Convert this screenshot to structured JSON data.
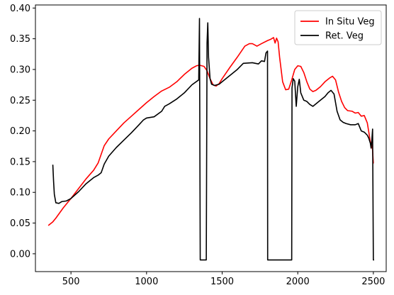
{
  "chart_data": {
    "type": "line",
    "title": "",
    "xlabel": "",
    "ylabel": "",
    "xlim": [
      265,
      2585
    ],
    "ylim": [
      -0.029,
      0.405
    ],
    "xticks": [
      500,
      1000,
      1500,
      2000,
      2500
    ],
    "yticks": [
      0.0,
      0.05,
      0.1,
      0.15,
      0.2,
      0.25,
      0.3,
      0.35,
      0.4
    ],
    "xtick_labels": [
      "500",
      "1000",
      "1500",
      "2000",
      "2500"
    ],
    "ytick_labels": [
      "0.00",
      "0.05",
      "0.10",
      "0.15",
      "0.20",
      "0.25",
      "0.30",
      "0.35",
      "0.40"
    ],
    "grid": false,
    "legend_position": "top-right",
    "series": [
      {
        "name": "In Situ Veg",
        "color": "#ff0000",
        "points": [
          [
            350,
            0.046
          ],
          [
            380,
            0.052
          ],
          [
            400,
            0.058
          ],
          [
            450,
            0.075
          ],
          [
            500,
            0.09
          ],
          [
            550,
            0.106
          ],
          [
            600,
            0.122
          ],
          [
            650,
            0.136
          ],
          [
            680,
            0.148
          ],
          [
            700,
            0.162
          ],
          [
            720,
            0.176
          ],
          [
            750,
            0.187
          ],
          [
            800,
            0.2
          ],
          [
            850,
            0.213
          ],
          [
            900,
            0.224
          ],
          [
            950,
            0.235
          ],
          [
            1000,
            0.246
          ],
          [
            1050,
            0.256
          ],
          [
            1100,
            0.265
          ],
          [
            1150,
            0.271
          ],
          [
            1200,
            0.28
          ],
          [
            1250,
            0.292
          ],
          [
            1300,
            0.302
          ],
          [
            1330,
            0.306
          ],
          [
            1350,
            0.307
          ],
          [
            1380,
            0.305
          ],
          [
            1400,
            0.298
          ],
          [
            1420,
            0.285
          ],
          [
            1440,
            0.275
          ],
          [
            1460,
            0.273
          ],
          [
            1480,
            0.277
          ],
          [
            1500,
            0.285
          ],
          [
            1550,
            0.303
          ],
          [
            1600,
            0.32
          ],
          [
            1650,
            0.338
          ],
          [
            1680,
            0.342
          ],
          [
            1700,
            0.342
          ],
          [
            1730,
            0.338
          ],
          [
            1760,
            0.342
          ],
          [
            1800,
            0.347
          ],
          [
            1820,
            0.349
          ],
          [
            1840,
            0.352
          ],
          [
            1850,
            0.343
          ],
          [
            1860,
            0.351
          ],
          [
            1870,
            0.345
          ],
          [
            1880,
            0.32
          ],
          [
            1900,
            0.28
          ],
          [
            1920,
            0.267
          ],
          [
            1940,
            0.268
          ],
          [
            1960,
            0.283
          ],
          [
            1980,
            0.3
          ],
          [
            2000,
            0.306
          ],
          [
            2020,
            0.305
          ],
          [
            2040,
            0.295
          ],
          [
            2060,
            0.28
          ],
          [
            2080,
            0.268
          ],
          [
            2100,
            0.264
          ],
          [
            2120,
            0.266
          ],
          [
            2150,
            0.272
          ],
          [
            2180,
            0.28
          ],
          [
            2210,
            0.286
          ],
          [
            2230,
            0.289
          ],
          [
            2250,
            0.283
          ],
          [
            2270,
            0.263
          ],
          [
            2290,
            0.248
          ],
          [
            2310,
            0.238
          ],
          [
            2330,
            0.233
          ],
          [
            2360,
            0.232
          ],
          [
            2380,
            0.229
          ],
          [
            2400,
            0.23
          ],
          [
            2420,
            0.224
          ],
          [
            2440,
            0.225
          ],
          [
            2460,
            0.213
          ],
          [
            2470,
            0.198
          ],
          [
            2480,
            0.182
          ],
          [
            2490,
            0.178
          ],
          [
            2495,
            0.168
          ],
          [
            2500,
            0.147
          ]
        ]
      },
      {
        "name": "Ret. Veg",
        "color": "#000000",
        "points": [
          [
            380,
            0.145
          ],
          [
            385,
            0.118
          ],
          [
            390,
            0.097
          ],
          [
            400,
            0.083
          ],
          [
            420,
            0.082
          ],
          [
            440,
            0.085
          ],
          [
            470,
            0.086
          ],
          [
            500,
            0.09
          ],
          [
            550,
            0.101
          ],
          [
            600,
            0.114
          ],
          [
            650,
            0.124
          ],
          [
            680,
            0.128
          ],
          [
            700,
            0.132
          ],
          [
            720,
            0.146
          ],
          [
            750,
            0.159
          ],
          [
            800,
            0.173
          ],
          [
            850,
            0.185
          ],
          [
            900,
            0.197
          ],
          [
            950,
            0.21
          ],
          [
            980,
            0.218
          ],
          [
            1000,
            0.221
          ],
          [
            1050,
            0.223
          ],
          [
            1100,
            0.232
          ],
          [
            1120,
            0.24
          ],
          [
            1150,
            0.244
          ],
          [
            1200,
            0.252
          ],
          [
            1250,
            0.262
          ],
          [
            1300,
            0.275
          ],
          [
            1345,
            0.283
          ],
          [
            1350,
            0.383
          ],
          [
            1355,
            -0.01
          ],
          [
            1395,
            -0.01
          ],
          [
            1400,
            0.343
          ],
          [
            1405,
            0.376
          ],
          [
            1410,
            0.32
          ],
          [
            1420,
            0.285
          ],
          [
            1430,
            0.276
          ],
          [
            1450,
            0.274
          ],
          [
            1480,
            0.276
          ],
          [
            1500,
            0.28
          ],
          [
            1550,
            0.29
          ],
          [
            1600,
            0.3
          ],
          [
            1640,
            0.31
          ],
          [
            1700,
            0.311
          ],
          [
            1740,
            0.309
          ],
          [
            1760,
            0.314
          ],
          [
            1780,
            0.313
          ],
          [
            1790,
            0.327
          ],
          [
            1800,
            0.33
          ],
          [
            1801,
            -0.01
          ],
          [
            1960,
            -0.01
          ],
          [
            1962,
            0.27
          ],
          [
            1970,
            0.285
          ],
          [
            1980,
            0.281
          ],
          [
            1990,
            0.24
          ],
          [
            2000,
            0.272
          ],
          [
            2010,
            0.284
          ],
          [
            2020,
            0.262
          ],
          [
            2040,
            0.25
          ],
          [
            2060,
            0.248
          ],
          [
            2080,
            0.243
          ],
          [
            2100,
            0.24
          ],
          [
            2120,
            0.244
          ],
          [
            2150,
            0.25
          ],
          [
            2180,
            0.256
          ],
          [
            2200,
            0.262
          ],
          [
            2220,
            0.266
          ],
          [
            2240,
            0.26
          ],
          [
            2260,
            0.232
          ],
          [
            2280,
            0.218
          ],
          [
            2300,
            0.214
          ],
          [
            2320,
            0.212
          ],
          [
            2350,
            0.21
          ],
          [
            2380,
            0.21
          ],
          [
            2400,
            0.212
          ],
          [
            2420,
            0.2
          ],
          [
            2440,
            0.198
          ],
          [
            2460,
            0.193
          ],
          [
            2470,
            0.188
          ],
          [
            2480,
            0.18
          ],
          [
            2485,
            0.172
          ],
          [
            2490,
            0.185
          ],
          [
            2495,
            0.203
          ],
          [
            2500,
            -0.01
          ],
          [
            2505,
            -0.01
          ]
        ]
      }
    ]
  }
}
